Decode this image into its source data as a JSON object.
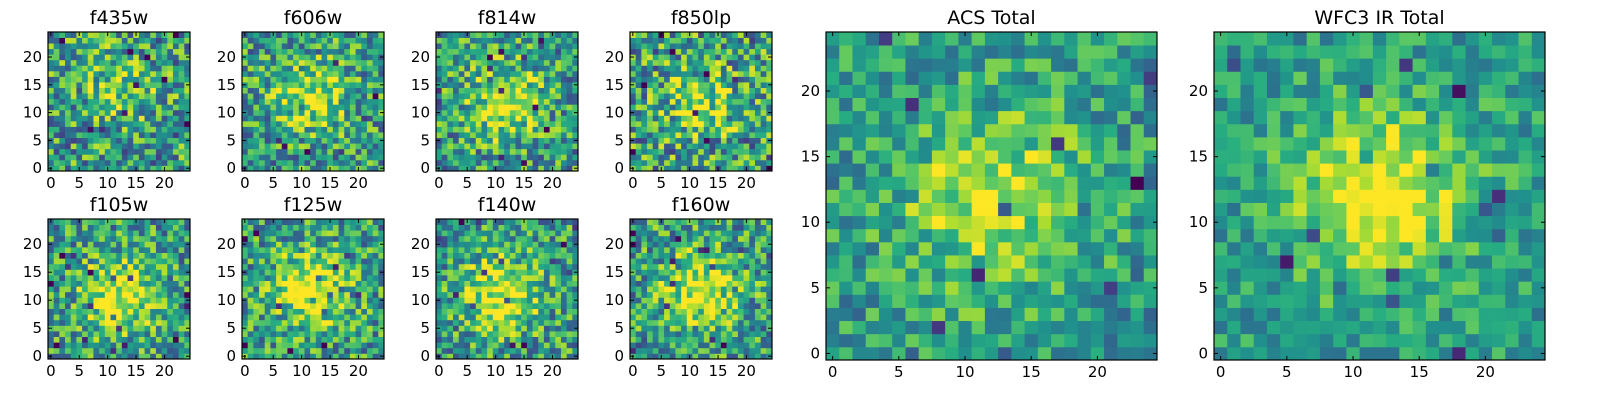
{
  "chart_data": [
    {
      "type": "heatmap",
      "id": "f435w",
      "title": "f435w",
      "grid": [
        25,
        25
      ],
      "xlim": [
        -0.5,
        24.5
      ],
      "ylim": [
        -0.5,
        24.5
      ],
      "xticks": [
        0,
        5,
        10,
        15,
        20
      ],
      "yticks": [
        0,
        5,
        10,
        15,
        20
      ],
      "colormap": "viridis",
      "center": [
        12,
        14
      ],
      "peak": 0.25,
      "noise": 0.45,
      "seed": 11
    },
    {
      "type": "heatmap",
      "id": "f606w",
      "title": "f606w",
      "grid": [
        25,
        25
      ],
      "xlim": [
        -0.5,
        24.5
      ],
      "ylim": [
        -0.5,
        24.5
      ],
      "xticks": [
        0,
        5,
        10,
        15,
        20
      ],
      "yticks": [
        0,
        5,
        10,
        15,
        20
      ],
      "colormap": "viridis",
      "center": [
        12,
        13
      ],
      "peak": 0.35,
      "noise": 0.42,
      "seed": 23
    },
    {
      "type": "heatmap",
      "id": "f814w",
      "title": "f814w",
      "grid": [
        25,
        25
      ],
      "xlim": [
        -0.5,
        24.5
      ],
      "ylim": [
        -0.5,
        24.5
      ],
      "xticks": [
        0,
        5,
        10,
        15,
        20
      ],
      "yticks": [
        0,
        5,
        10,
        15,
        20
      ],
      "colormap": "viridis",
      "center": [
        12,
        12
      ],
      "peak": 0.4,
      "noise": 0.42,
      "seed": 37
    },
    {
      "type": "heatmap",
      "id": "f850lp",
      "title": "f850lp",
      "grid": [
        25,
        25
      ],
      "xlim": [
        -0.5,
        24.5
      ],
      "ylim": [
        -0.5,
        24.5
      ],
      "xticks": [
        0,
        5,
        10,
        15,
        20
      ],
      "yticks": [
        0,
        5,
        10,
        15,
        20
      ],
      "colormap": "viridis",
      "center": [
        12,
        12
      ],
      "peak": 0.3,
      "noise": 0.48,
      "seed": 41
    },
    {
      "type": "heatmap",
      "id": "f105w",
      "title": "f105w",
      "grid": [
        25,
        25
      ],
      "xlim": [
        -0.5,
        24.5
      ],
      "ylim": [
        -0.5,
        24.5
      ],
      "xticks": [
        0,
        5,
        10,
        15,
        20
      ],
      "yticks": [
        0,
        5,
        10,
        15,
        20
      ],
      "colormap": "viridis",
      "center": [
        12,
        11
      ],
      "peak": 0.45,
      "noise": 0.4,
      "seed": 53
    },
    {
      "type": "heatmap",
      "id": "f125w",
      "title": "f125w",
      "grid": [
        25,
        25
      ],
      "xlim": [
        -0.5,
        24.5
      ],
      "ylim": [
        -0.5,
        24.5
      ],
      "xticks": [
        0,
        5,
        10,
        15,
        20
      ],
      "yticks": [
        0,
        5,
        10,
        15,
        20
      ],
      "colormap": "viridis",
      "center": [
        12,
        12
      ],
      "peak": 0.5,
      "noise": 0.4,
      "seed": 67
    },
    {
      "type": "heatmap",
      "id": "f140w",
      "title": "f140w",
      "grid": [
        25,
        25
      ],
      "xlim": [
        -0.5,
        24.5
      ],
      "ylim": [
        -0.5,
        24.5
      ],
      "xticks": [
        0,
        5,
        10,
        15,
        20
      ],
      "yticks": [
        0,
        5,
        10,
        15,
        20
      ],
      "colormap": "viridis",
      "center": [
        11,
        11
      ],
      "peak": 0.45,
      "noise": 0.4,
      "seed": 79
    },
    {
      "type": "heatmap",
      "id": "f160w",
      "title": "f160w",
      "grid": [
        25,
        25
      ],
      "xlim": [
        -0.5,
        24.5
      ],
      "ylim": [
        -0.5,
        24.5
      ],
      "xticks": [
        0,
        5,
        10,
        15,
        20
      ],
      "yticks": [
        0,
        5,
        10,
        15,
        20
      ],
      "colormap": "viridis",
      "center": [
        12,
        12
      ],
      "peak": 0.45,
      "noise": 0.42,
      "seed": 83
    },
    {
      "type": "heatmap",
      "id": "acs-total",
      "title": "ACS Total",
      "grid": [
        25,
        25
      ],
      "xlim": [
        -0.5,
        24.5
      ],
      "ylim": [
        -0.5,
        24.5
      ],
      "xticks": [
        0,
        5,
        10,
        15,
        20
      ],
      "yticks": [
        0,
        5,
        10,
        15,
        20
      ],
      "colormap": "viridis",
      "center": [
        12,
        12
      ],
      "peak": 0.4,
      "noise": 0.3,
      "seed": 97
    },
    {
      "type": "heatmap",
      "id": "wfc3-ir-total",
      "title": "WFC3 IR Total",
      "grid": [
        25,
        25
      ],
      "xlim": [
        -0.5,
        24.5
      ],
      "ylim": [
        -0.5,
        24.5
      ],
      "xticks": [
        0,
        5,
        10,
        15,
        20
      ],
      "yticks": [
        0,
        5,
        10,
        15,
        20
      ],
      "colormap": "viridis",
      "center": [
        12,
        12
      ],
      "peak": 0.5,
      "noise": 0.25,
      "seed": 101
    }
  ]
}
